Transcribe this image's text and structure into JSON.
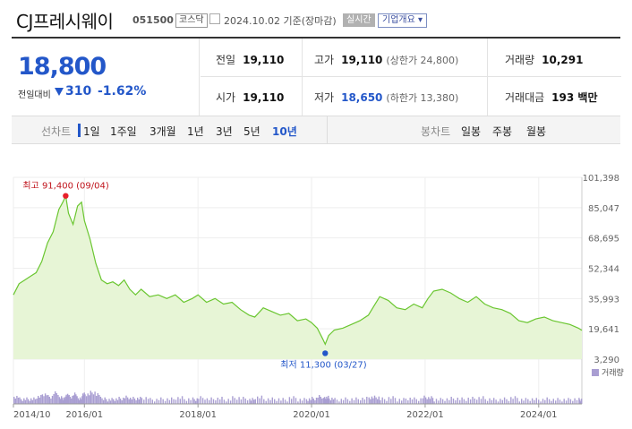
{
  "header": {
    "name": "CJ프레시웨이",
    "code": "051500",
    "market": "코스닥",
    "date_text": "2024.10.02 기준(장마감)",
    "live_label": "실시간",
    "corp_label": "기업개요 ▾"
  },
  "price": {
    "current": "18,800",
    "change_label": "전일대비",
    "change": "310",
    "change_pct": "-1.62%"
  },
  "stats": {
    "prev_label": "전일",
    "prev": "19,110",
    "high_label": "고가",
    "high": "19,110",
    "upper": "(상한가 24,800)",
    "volume_label": "거래량",
    "volume": "10,291",
    "open_label": "시가",
    "open": "19,110",
    "low_label": "저가",
    "low": "18,650",
    "lower": "(하한가 13,380)",
    "amount_label": "거래대금",
    "amount": "193 백만"
  },
  "tabs": {
    "line_label": "선차트",
    "line_items": [
      "1일",
      "1주일",
      "3개월",
      "1년",
      "3년",
      "5년",
      "10년"
    ],
    "line_selected": "10년",
    "candle_label": "봉차트",
    "candle_items": [
      "일봉",
      "주봉",
      "월봉"
    ]
  },
  "colors": {
    "accent": "#2357c9",
    "line": "#6ac630",
    "fill": "#e7f5d6",
    "high_marker": "#e8202a",
    "low_marker": "#2357c9",
    "volume": "#a99ed2"
  },
  "chart_data": {
    "type": "area",
    "y_ticks": [
      "101,398",
      "85,047",
      "68,695",
      "52,344",
      "35,993",
      "19,641",
      "3,290"
    ],
    "ylim": [
      3290,
      101398
    ],
    "x_ticks": [
      "2014/10",
      "2016/01",
      "2018/01",
      "2020/01",
      "2022/01",
      "2024/01"
    ],
    "x_tick_years": [
      2014.75,
      2016.0,
      2018.0,
      2020.0,
      2022.0,
      2024.0
    ],
    "xlim": [
      2014.75,
      2024.76
    ],
    "max_label": "최고 91,400 (09/04)",
    "max_point": {
      "x": 2015.67,
      "y": 91400
    },
    "min_label": "최저 11,300 (03/27)",
    "min_point": {
      "x": 2020.24,
      "y": 11300
    },
    "volume_label": "거래량",
    "series": [
      {
        "x": [
          2014.75,
          2014.85,
          2014.95,
          2015.05,
          2015.15,
          2015.25,
          2015.35,
          2015.45,
          2015.55,
          2015.62,
          2015.67,
          2015.72,
          2015.8,
          2015.88,
          2015.95,
          2016.0,
          2016.1,
          2016.2,
          2016.3,
          2016.4,
          2016.5,
          2016.6,
          2016.7,
          2016.8,
          2016.9,
          2017.0,
          2017.15,
          2017.3,
          2017.45,
          2017.6,
          2017.75,
          2017.9,
          2018.0,
          2018.15,
          2018.3,
          2018.45,
          2018.6,
          2018.75,
          2018.9,
          2019.0,
          2019.15,
          2019.3,
          2019.45,
          2019.6,
          2019.75,
          2019.9,
          2020.0,
          2020.1,
          2020.2,
          2020.24,
          2020.3,
          2020.4,
          2020.55,
          2020.7,
          2020.85,
          2021.0,
          2021.1,
          2021.2,
          2021.35,
          2021.5,
          2021.65,
          2021.8,
          2021.95,
          2022.05,
          2022.15,
          2022.3,
          2022.45,
          2022.6,
          2022.75,
          2022.9,
          2023.05,
          2023.2,
          2023.35,
          2023.5,
          2023.65,
          2023.8,
          2023.95,
          2024.1,
          2024.25,
          2024.4,
          2024.55,
          2024.7,
          2024.76
        ],
        "y": [
          38000,
          44000,
          46000,
          48000,
          50000,
          56000,
          66000,
          72000,
          84000,
          88000,
          91400,
          82000,
          76000,
          86000,
          88000,
          78000,
          68000,
          55000,
          46000,
          44000,
          45000,
          43000,
          46000,
          41000,
          38000,
          41000,
          37000,
          38000,
          36000,
          38000,
          34000,
          36000,
          38000,
          34000,
          36000,
          33000,
          34000,
          30000,
          27000,
          26000,
          31000,
          29000,
          27000,
          28000,
          24000,
          25000,
          23000,
          20000,
          14000,
          11300,
          16000,
          19000,
          20000,
          22000,
          24000,
          27000,
          32000,
          37000,
          35000,
          31000,
          30000,
          33000,
          31000,
          36000,
          40000,
          41000,
          39000,
          36000,
          34000,
          37000,
          33000,
          31000,
          30000,
          28000,
          24000,
          23000,
          25000,
          26000,
          24000,
          23000,
          22000,
          20000,
          18800
        ]
      }
    ]
  }
}
